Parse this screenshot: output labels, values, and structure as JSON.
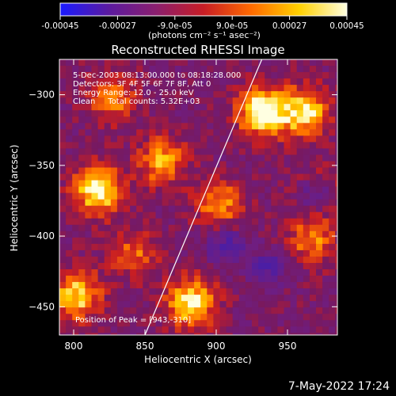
{
  "colorbar": {
    "ticks": [
      "-0.00045",
      "-0.00027",
      "-9.0e-05",
      "9.0e-05",
      "0.00027",
      "0.00045"
    ],
    "units_label": "(photons cm⁻² s⁻¹ asec⁻²)",
    "range": [
      -0.00045,
      0.00045
    ],
    "colors": [
      "#1a1aff",
      "#5a1aa0",
      "#8a1f6f",
      "#c81d25",
      "#ff6a00",
      "#ffd000",
      "#ffffe0"
    ]
  },
  "chart_data": {
    "type": "heatmap",
    "title": "Reconstructed RHESSI Image",
    "xlabel": "Heliocentric X (arcsec)",
    "ylabel": "Heliocentric Y (arcsec)",
    "xlim": [
      790,
      985
    ],
    "ylim": [
      -470,
      -275
    ],
    "xticks": [
      800,
      850,
      900,
      950
    ],
    "yticks": [
      -300,
      -350,
      -400,
      -450
    ],
    "annotations": [
      "5-Dec-2003 08:13:00.000 to 08:18:28.000",
      "Detectors: 3F 4F 5F 6F 7F 8F, Att 0",
      "Energy Range: 12.0 - 25.0 keV",
      "Clean     Total counts: 5.32E+03"
    ],
    "peak_label": "Position of Peak = [943,-310]",
    "peak": [
      943,
      -310
    ],
    "limb_line": [
      [
        850,
        -470
      ],
      [
        932,
        -275
      ]
    ],
    "bright_sources": [
      {
        "x": 930,
        "y": -310,
        "intensity": 1.0
      },
      {
        "x": 815,
        "y": -365,
        "intensity": 0.95
      },
      {
        "x": 880,
        "y": -445,
        "intensity": 0.9
      },
      {
        "x": 960,
        "y": -310,
        "intensity": 0.85
      },
      {
        "x": 800,
        "y": -440,
        "intensity": 0.8
      },
      {
        "x": 860,
        "y": -345,
        "intensity": 0.65
      },
      {
        "x": 900,
        "y": -375,
        "intensity": 0.6
      },
      {
        "x": 825,
        "y": -300,
        "intensity": 0.55
      },
      {
        "x": 965,
        "y": -400,
        "intensity": 0.55
      },
      {
        "x": 970,
        "y": -365,
        "intensity": 0.5
      },
      {
        "x": 840,
        "y": -410,
        "intensity": 0.45
      }
    ],
    "dark_sources": [
      {
        "x": 968,
        "y": -368,
        "intensity": 0.9
      },
      {
        "x": 905,
        "y": -405,
        "intensity": 0.6
      },
      {
        "x": 935,
        "y": -420,
        "intensity": 0.5
      }
    ]
  },
  "footer": {
    "timestamp": "7-May-2022 17:24"
  }
}
